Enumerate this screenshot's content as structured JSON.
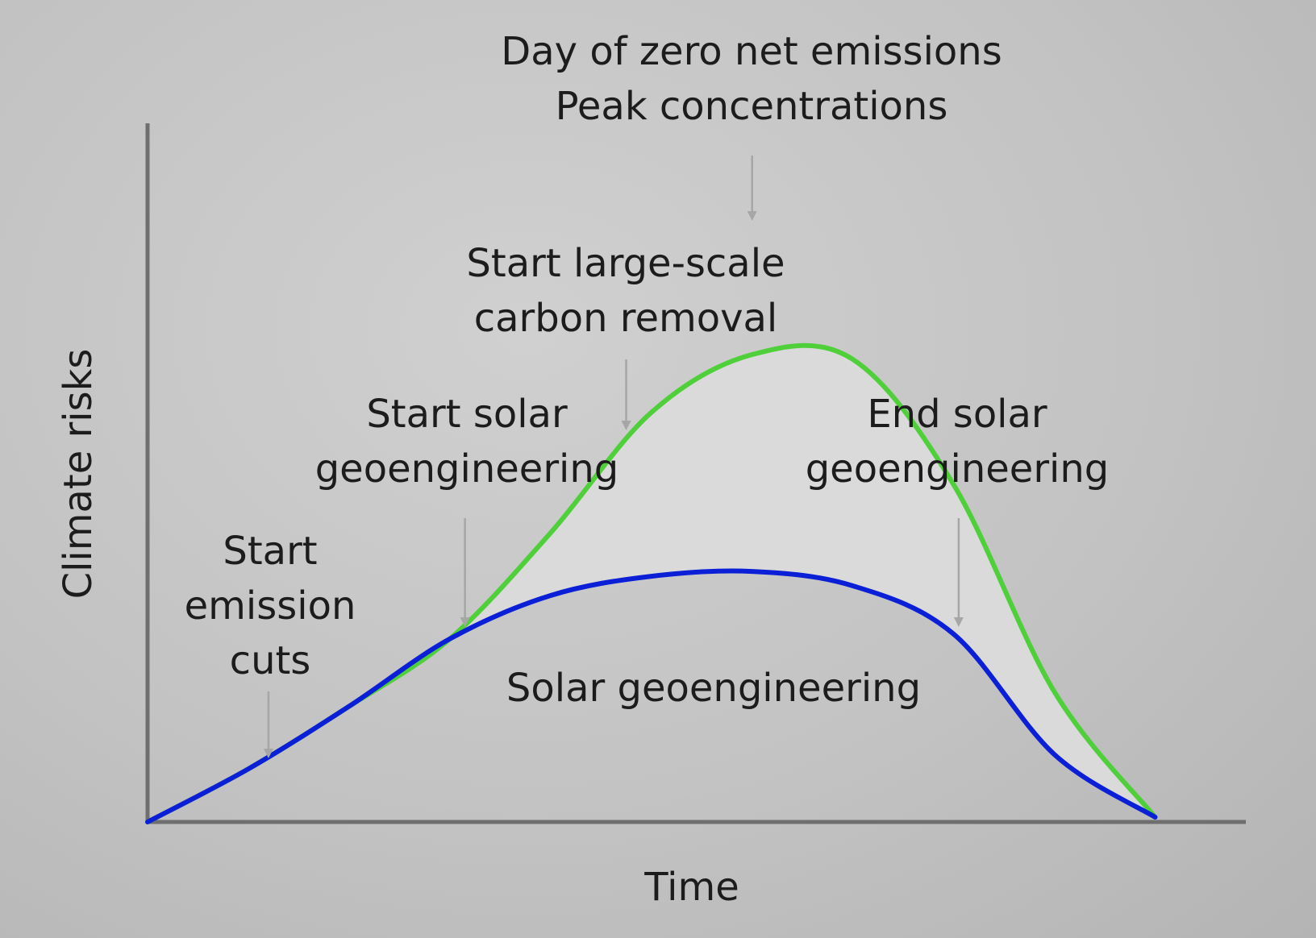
{
  "chart_data": {
    "type": "line",
    "xlabel": "Time",
    "ylabel": "Climate risks",
    "colors": {
      "without_geoengineering": "#4fd03a",
      "with_geoengineering": "#0a1fd6",
      "gap_fill": "#dadada",
      "axis": "#6f6f6f",
      "marker_arrow": "#a6a6a6"
    },
    "series": [
      {
        "values": [
          [
            0,
            0
          ],
          [
            10,
            0.11
          ],
          [
            20,
            0.24
          ],
          [
            30,
            0.38
          ],
          [
            40,
            0.6
          ],
          [
            50,
            0.85
          ],
          [
            60,
            0.97
          ],
          [
            70,
            0.96
          ],
          [
            80,
            0.7
          ],
          [
            90,
            0.27
          ],
          [
            100,
            0.01
          ]
        ]
      },
      {
        "values": [
          [
            0,
            0
          ],
          [
            10,
            0.11
          ],
          [
            20,
            0.24
          ],
          [
            30,
            0.38
          ],
          [
            40,
            0.47
          ],
          [
            50,
            0.51
          ],
          [
            60,
            0.52
          ],
          [
            70,
            0.49
          ],
          [
            80,
            0.39
          ],
          [
            90,
            0.14
          ],
          [
            100,
            0.01
          ]
        ]
      }
    ],
    "area_label": "Solar geoengineering",
    "annotations": [
      {
        "lines": [
          "Start",
          "emission",
          "cuts"
        ],
        "x": 12
      },
      {
        "lines": [
          "Start solar",
          "geoengineering"
        ],
        "x": 31.5
      },
      {
        "lines": [
          "Start large-scale",
          "carbon removal"
        ],
        "x": 47.5
      },
      {
        "lines": [
          "Day of zero net emissions",
          "Peak concentrations"
        ],
        "x": 60
      },
      {
        "lines": [
          "End solar",
          "geoengineering"
        ],
        "x": 80.5
      }
    ],
    "xlim": [
      0,
      109
    ],
    "ylim": [
      0,
      1.45
    ],
    "grid": false,
    "legend": "none"
  }
}
